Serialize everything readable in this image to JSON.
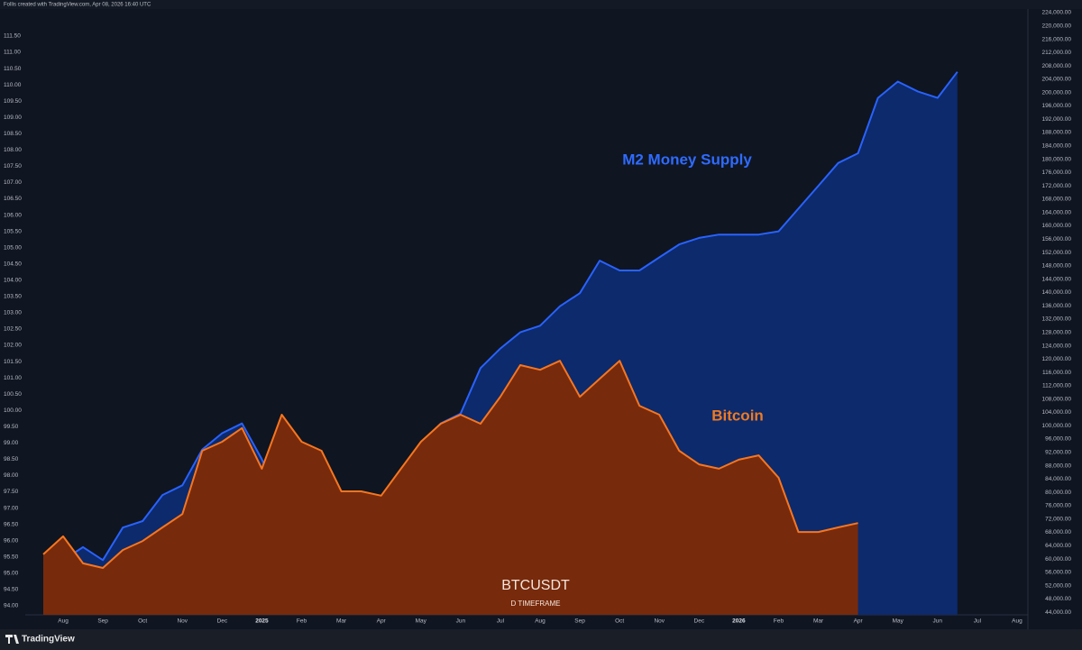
{
  "header": "Follis created with TradingView.com, Apr 08, 2026 16:40 UTC",
  "footer": "TradingView",
  "chart_data": {
    "type": "area",
    "annotations": [
      {
        "text": "M2 Money Supply",
        "color": "#2f6bff"
      },
      {
        "text": "Bitcoin",
        "color": "#f07a22"
      },
      {
        "text": "BTCUSDT",
        "color": "#f3e6dc"
      },
      {
        "text": "D TIMEFRAME",
        "color": "#f3e6dc"
      }
    ],
    "categories": [
      null,
      "Aug",
      null,
      "Sep",
      null,
      "Oct",
      null,
      "Nov",
      null,
      "Dec",
      null,
      "2025",
      null,
      "Feb",
      null,
      "Mar",
      null,
      "Apr",
      null,
      "May",
      null,
      "Jun",
      null,
      "Jul",
      null,
      "Aug",
      null,
      "Sep",
      null,
      "Oct",
      null,
      "Nov",
      null,
      "Dec",
      null,
      "2026",
      null,
      "Feb",
      null,
      "Mar",
      null,
      "Apr",
      null,
      "May",
      null,
      "Jun",
      null,
      "Jul",
      null,
      "Aug"
    ],
    "series": [
      {
        "name": "M2 Money Supply",
        "color": "#2962ff",
        "fill": "#0c2a6c",
        "axis": "y",
        "values": [
          95.3,
          95.4,
          95.8,
          95.4,
          96.4,
          96.6,
          97.4,
          97.7,
          98.8,
          99.3,
          99.6,
          98.5,
          97.1,
          97.5,
          97.0,
          96.8,
          96.8,
          97.1,
          98.2,
          99.0,
          99.6,
          99.9,
          101.3,
          101.9,
          102.4,
          102.6,
          103.2,
          103.6,
          104.6,
          104.3,
          104.3,
          104.7,
          105.1,
          105.3,
          105.4,
          105.4,
          105.4,
          105.5,
          106.2,
          106.9,
          107.6,
          107.9,
          109.6,
          110.1,
          109.8,
          109.6,
          110.4,
          null,
          null,
          null
        ]
      },
      {
        "name": "Bitcoin",
        "color": "#f7761f",
        "fill": "#782a0c",
        "axis": "y2",
        "values": [
          61400,
          66800,
          58700,
          57300,
          62700,
          65400,
          69500,
          73500,
          92500,
          95200,
          99300,
          87100,
          103300,
          95200,
          92500,
          80300,
          80300,
          79000,
          87100,
          95200,
          100600,
          103300,
          100600,
          108700,
          118200,
          116800,
          119500,
          108700,
          114100,
          119500,
          106000,
          103300,
          92500,
          88400,
          87100,
          89800,
          91100,
          84400,
          68100,
          68100,
          69500,
          70800,
          null,
          null,
          null,
          null,
          null,
          null,
          null,
          null
        ]
      }
    ],
    "ylim": [
      93.72,
      112.33
    ],
    "yticks": [
      {
        "value": 94,
        "label": "94.00"
      },
      {
        "value": 94.5,
        "label": "94.50"
      },
      {
        "value": 95,
        "label": "95.00"
      },
      {
        "value": 95.5,
        "label": "95.50"
      },
      {
        "value": 96,
        "label": "96.00"
      },
      {
        "value": 96.5,
        "label": "96.50"
      },
      {
        "value": 97,
        "label": "97.00"
      },
      {
        "value": 97.5,
        "label": "97.50"
      },
      {
        "value": 98,
        "label": "98.00"
      },
      {
        "value": 98.5,
        "label": "98.50"
      },
      {
        "value": 99,
        "label": "99.00"
      },
      {
        "value": 99.5,
        "label": "99.50"
      },
      {
        "value": 100,
        "label": "100.00"
      },
      {
        "value": 100.5,
        "label": "100.50"
      },
      {
        "value": 101,
        "label": "101.00"
      },
      {
        "value": 101.5,
        "label": "101.50"
      },
      {
        "value": 102,
        "label": "102.00"
      },
      {
        "value": 102.5,
        "label": "102.50"
      },
      {
        "value": 103,
        "label": "103.00"
      },
      {
        "value": 103.5,
        "label": "103.50"
      },
      {
        "value": 104,
        "label": "104.00"
      },
      {
        "value": 104.5,
        "label": "104.50"
      },
      {
        "value": 105,
        "label": "105.00"
      },
      {
        "value": 105.5,
        "label": "105.50"
      },
      {
        "value": 106,
        "label": "106.00"
      },
      {
        "value": 106.5,
        "label": "106.50"
      },
      {
        "value": 107,
        "label": "107.00"
      },
      {
        "value": 107.5,
        "label": "107.50"
      },
      {
        "value": 108,
        "label": "108.00"
      },
      {
        "value": 108.5,
        "label": "108.50"
      },
      {
        "value": 109,
        "label": "109.00"
      },
      {
        "value": 109.5,
        "label": "109.50"
      },
      {
        "value": 110,
        "label": "110.00"
      },
      {
        "value": 110.5,
        "label": "110.50"
      },
      {
        "value": 111,
        "label": "111.00"
      },
      {
        "value": 111.5,
        "label": "111.50"
      }
    ],
    "y2lim": [
      43240,
      225080
    ],
    "y2ticks": [
      {
        "value": 44000,
        "label": "44,000.00"
      },
      {
        "value": 48000,
        "label": "48,000.00"
      },
      {
        "value": 52000,
        "label": "52,000.00"
      },
      {
        "value": 56000,
        "label": "56,000.00"
      },
      {
        "value": 60000,
        "label": "60,000.00"
      },
      {
        "value": 64000,
        "label": "64,000.00"
      },
      {
        "value": 68000,
        "label": "68,000.00"
      },
      {
        "value": 72000,
        "label": "72,000.00"
      },
      {
        "value": 76000,
        "label": "76,000.00"
      },
      {
        "value": 80000,
        "label": "80,000.00"
      },
      {
        "value": 84000,
        "label": "84,000.00"
      },
      {
        "value": 88000,
        "label": "88,000.00"
      },
      {
        "value": 92000,
        "label": "92,000.00"
      },
      {
        "value": 96000,
        "label": "96,000.00"
      },
      {
        "value": 100000,
        "label": "100,000.00"
      },
      {
        "value": 104000,
        "label": "104,000.00"
      },
      {
        "value": 108000,
        "label": "108,000.00"
      },
      {
        "value": 112000,
        "label": "112,000.00"
      },
      {
        "value": 116000,
        "label": "116,000.00"
      },
      {
        "value": 120000,
        "label": "120,000.00"
      },
      {
        "value": 124000,
        "label": "124,000.00"
      },
      {
        "value": 128000,
        "label": "128,000.00"
      },
      {
        "value": 132000,
        "label": "132,000.00"
      },
      {
        "value": 136000,
        "label": "136,000.00"
      },
      {
        "value": 140000,
        "label": "140,000.00"
      },
      {
        "value": 144000,
        "label": "144,000.00"
      },
      {
        "value": 148000,
        "label": "148,000.00"
      },
      {
        "value": 152000,
        "label": "152,000.00"
      },
      {
        "value": 156000,
        "label": "156,000.00"
      },
      {
        "value": 160000,
        "label": "160,000.00"
      },
      {
        "value": 164000,
        "label": "164,000.00"
      },
      {
        "value": 168000,
        "label": "168,000.00"
      },
      {
        "value": 172000,
        "label": "172,000.00"
      },
      {
        "value": 176000,
        "label": "176,000.00"
      },
      {
        "value": 180000,
        "label": "180,000.00"
      },
      {
        "value": 184000,
        "label": "184,000.00"
      },
      {
        "value": 188000,
        "label": "188,000.00"
      },
      {
        "value": 192000,
        "label": "192,000.00"
      },
      {
        "value": 196000,
        "label": "196,000.00"
      },
      {
        "value": 200000,
        "label": "200,000.00"
      },
      {
        "value": 204000,
        "label": "204,000.00"
      },
      {
        "value": 208000,
        "label": "208,000.00"
      },
      {
        "value": 212000,
        "label": "212,000.00"
      },
      {
        "value": 216000,
        "label": "216,000.00"
      },
      {
        "value": 220000,
        "label": "220,000.00"
      },
      {
        "value": 224000,
        "label": "224,000.00"
      }
    ],
    "grid": false
  }
}
